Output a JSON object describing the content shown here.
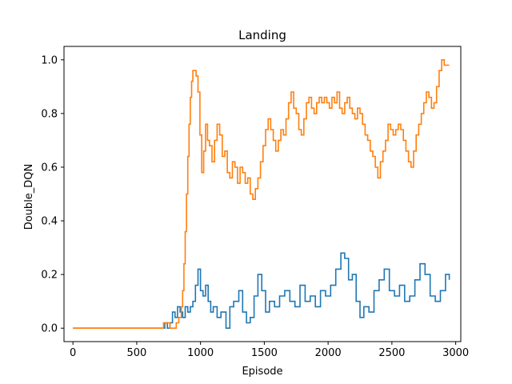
{
  "chart_data": {
    "type": "line",
    "title": "Landing",
    "xlabel": "Episode",
    "ylabel": "Double_DQN",
    "xlim": [
      -70,
      3040
    ],
    "ylim": [
      -0.05,
      1.05
    ],
    "x_ticks": [
      0,
      500,
      1000,
      1500,
      2000,
      2500,
      3000
    ],
    "y_ticks": [
      0.0,
      0.2,
      0.4,
      0.6,
      0.8,
      1.0
    ],
    "x_tick_labels": [
      "0",
      "500",
      "1000",
      "1500",
      "2000",
      "2500",
      "3000"
    ],
    "y_tick_labels": [
      "0.0",
      "0.2",
      "0.4",
      "0.6",
      "0.8",
      "1.0"
    ],
    "grid": false,
    "legend": "none",
    "series": [
      {
        "color": "#1f77b4",
        "x": [
          0,
          700,
          720,
          740,
          760,
          780,
          800,
          820,
          840,
          860,
          880,
          900,
          920,
          940,
          960,
          980,
          1000,
          1020,
          1040,
          1060,
          1080,
          1100,
          1130,
          1160,
          1200,
          1230,
          1260,
          1300,
          1330,
          1360,
          1390,
          1420,
          1450,
          1480,
          1510,
          1540,
          1580,
          1620,
          1660,
          1700,
          1740,
          1780,
          1820,
          1860,
          1900,
          1940,
          1980,
          2020,
          2060,
          2100,
          2130,
          2160,
          2190,
          2220,
          2250,
          2280,
          2320,
          2360,
          2400,
          2440,
          2480,
          2520,
          2560,
          2600,
          2640,
          2680,
          2720,
          2760,
          2800,
          2840,
          2880,
          2920,
          2950
        ],
        "y": [
          0.0,
          0.0,
          0.02,
          0.0,
          0.02,
          0.06,
          0.04,
          0.08,
          0.06,
          0.04,
          0.08,
          0.06,
          0.08,
          0.1,
          0.16,
          0.22,
          0.14,
          0.12,
          0.16,
          0.1,
          0.06,
          0.08,
          0.04,
          0.06,
          0.0,
          0.08,
          0.1,
          0.14,
          0.06,
          0.02,
          0.04,
          0.12,
          0.2,
          0.14,
          0.06,
          0.1,
          0.08,
          0.12,
          0.14,
          0.1,
          0.08,
          0.16,
          0.1,
          0.12,
          0.08,
          0.14,
          0.12,
          0.16,
          0.22,
          0.28,
          0.26,
          0.18,
          0.2,
          0.1,
          0.04,
          0.08,
          0.06,
          0.14,
          0.18,
          0.22,
          0.14,
          0.12,
          0.16,
          0.1,
          0.12,
          0.18,
          0.24,
          0.2,
          0.12,
          0.1,
          0.14,
          0.2,
          0.18
        ]
      },
      {
        "color": "#ff7f0e",
        "x": [
          0,
          700,
          710,
          740,
          760,
          790,
          810,
          830,
          850,
          860,
          870,
          880,
          890,
          900,
          910,
          920,
          930,
          940,
          950,
          965,
          980,
          995,
          1010,
          1025,
          1040,
          1055,
          1070,
          1090,
          1110,
          1130,
          1150,
          1170,
          1190,
          1210,
          1230,
          1250,
          1270,
          1290,
          1310,
          1330,
          1350,
          1370,
          1390,
          1410,
          1430,
          1450,
          1470,
          1490,
          1510,
          1530,
          1550,
          1570,
          1590,
          1610,
          1630,
          1650,
          1670,
          1690,
          1710,
          1730,
          1750,
          1770,
          1790,
          1810,
          1830,
          1850,
          1870,
          1890,
          1910,
          1930,
          1950,
          1970,
          1990,
          2010,
          2030,
          2050,
          2070,
          2090,
          2110,
          2130,
          2150,
          2170,
          2190,
          2210,
          2230,
          2250,
          2270,
          2290,
          2310,
          2330,
          2350,
          2370,
          2390,
          2410,
          2430,
          2450,
          2470,
          2490,
          2510,
          2530,
          2550,
          2570,
          2590,
          2610,
          2630,
          2650,
          2670,
          2690,
          2710,
          2730,
          2750,
          2770,
          2790,
          2810,
          2830,
          2850,
          2870,
          2890,
          2910,
          2930,
          2950
        ],
        "y": [
          0.0,
          0.0,
          0.02,
          0.02,
          0.0,
          0.0,
          0.02,
          0.04,
          0.08,
          0.14,
          0.24,
          0.36,
          0.5,
          0.64,
          0.76,
          0.86,
          0.92,
          0.96,
          0.96,
          0.94,
          0.88,
          0.72,
          0.58,
          0.66,
          0.76,
          0.7,
          0.68,
          0.62,
          0.7,
          0.76,
          0.72,
          0.64,
          0.66,
          0.58,
          0.56,
          0.62,
          0.6,
          0.54,
          0.6,
          0.58,
          0.54,
          0.56,
          0.5,
          0.48,
          0.52,
          0.56,
          0.62,
          0.68,
          0.74,
          0.78,
          0.74,
          0.7,
          0.66,
          0.7,
          0.74,
          0.72,
          0.78,
          0.84,
          0.88,
          0.82,
          0.8,
          0.74,
          0.72,
          0.78,
          0.84,
          0.86,
          0.82,
          0.8,
          0.84,
          0.86,
          0.84,
          0.86,
          0.84,
          0.82,
          0.86,
          0.84,
          0.88,
          0.82,
          0.8,
          0.84,
          0.86,
          0.82,
          0.8,
          0.78,
          0.82,
          0.8,
          0.76,
          0.72,
          0.7,
          0.66,
          0.64,
          0.6,
          0.56,
          0.62,
          0.66,
          0.7,
          0.76,
          0.74,
          0.72,
          0.74,
          0.76,
          0.74,
          0.7,
          0.66,
          0.62,
          0.6,
          0.66,
          0.72,
          0.76,
          0.8,
          0.84,
          0.88,
          0.86,
          0.82,
          0.84,
          0.9,
          0.96,
          1.0,
          0.98,
          0.98,
          0.98
        ]
      }
    ]
  }
}
